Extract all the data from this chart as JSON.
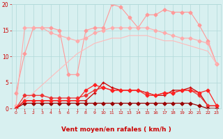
{
  "x": [
    0,
    1,
    2,
    3,
    4,
    5,
    6,
    7,
    8,
    9,
    10,
    11,
    12,
    13,
    14,
    15,
    16,
    17,
    18,
    19,
    20,
    21,
    22,
    23
  ],
  "series": [
    {
      "color": "#ff9999",
      "linewidth": 0.8,
      "marker": "D",
      "markersize": 2.5,
      "values": [
        3.0,
        10.5,
        15.5,
        15.5,
        15.5,
        15.0,
        6.5,
        6.5,
        15.0,
        15.5,
        15.5,
        20.0,
        19.5,
        17.5,
        15.5,
        18.0,
        18.0,
        19.0,
        18.5,
        18.5,
        18.5,
        16.0,
        13.0,
        8.5
      ]
    },
    {
      "color": "#ffaaaa",
      "linewidth": 0.8,
      "marker": "D",
      "markersize": 2.5,
      "values": [
        0.5,
        15.5,
        15.5,
        15.5,
        14.5,
        14.0,
        13.5,
        13.0,
        13.5,
        14.5,
        15.0,
        15.5,
        15.5,
        15.5,
        15.5,
        15.5,
        15.0,
        14.5,
        14.0,
        13.5,
        13.5,
        13.0,
        12.5,
        8.5
      ]
    },
    {
      "color": "#ffbbbb",
      "linewidth": 0.8,
      "marker": null,
      "markersize": 0,
      "values": [
        0.0,
        1.5,
        3.0,
        4.5,
        6.0,
        7.5,
        9.0,
        10.5,
        11.5,
        12.5,
        13.0,
        13.5,
        13.5,
        14.0,
        14.0,
        14.0,
        13.5,
        13.0,
        13.0,
        12.5,
        12.0,
        11.5,
        11.0,
        8.5
      ]
    },
    {
      "color": "#cc0000",
      "linewidth": 0.9,
      "marker": "+",
      "markersize": 3.5,
      "values": [
        0.0,
        1.5,
        1.5,
        1.5,
        1.5,
        1.5,
        1.5,
        1.5,
        1.5,
        3.0,
        5.0,
        4.0,
        3.5,
        3.5,
        3.5,
        3.0,
        2.5,
        2.5,
        3.5,
        3.5,
        4.0,
        3.0,
        0.5,
        0.5
      ]
    },
    {
      "color": "#ee3333",
      "linewidth": 0.9,
      "marker": "D",
      "markersize": 2.5,
      "values": [
        0.0,
        2.5,
        2.5,
        2.5,
        2.0,
        2.0,
        2.0,
        2.0,
        2.5,
        3.5,
        4.0,
        3.5,
        3.5,
        3.5,
        3.5,
        3.0,
        2.5,
        3.0,
        3.0,
        3.5,
        3.5,
        2.5,
        0.5,
        0.5
      ]
    },
    {
      "color": "#990000",
      "linewidth": 0.9,
      "marker": "D",
      "markersize": 2.5,
      "values": [
        0.0,
        1.0,
        1.0,
        1.0,
        1.0,
        1.0,
        1.0,
        1.0,
        1.0,
        1.0,
        1.0,
        1.0,
        1.0,
        1.0,
        1.0,
        1.0,
        1.0,
        1.0,
        1.0,
        1.0,
        1.0,
        0.5,
        0.0,
        0.0
      ]
    },
    {
      "color": "#ff2222",
      "linewidth": 0.9,
      "marker": "D",
      "markersize": 2.5,
      "values": [
        0.0,
        1.5,
        1.5,
        1.5,
        1.5,
        1.5,
        1.5,
        1.5,
        3.5,
        4.5,
        4.0,
        3.5,
        3.5,
        3.5,
        3.5,
        2.5,
        2.5,
        3.0,
        3.0,
        3.5,
        3.5,
        3.0,
        3.5,
        0.5
      ]
    }
  ],
  "arrow_color": "#ff6666",
  "xlabel": "Vent moyen/en rafales ( km/h )",
  "xlim_min": -0.5,
  "xlim_max": 23.5,
  "ylim_min": 0,
  "ylim_max": 20,
  "yticks": [
    0,
    5,
    10,
    15,
    20
  ],
  "xticks": [
    0,
    1,
    2,
    3,
    4,
    5,
    6,
    7,
    8,
    9,
    10,
    11,
    12,
    13,
    14,
    15,
    16,
    17,
    18,
    19,
    20,
    21,
    22,
    23
  ],
  "background_color": "#d8f0f0",
  "grid_color": "#b0d8d8",
  "tick_color": "#cc0000",
  "label_color": "#cc0000"
}
